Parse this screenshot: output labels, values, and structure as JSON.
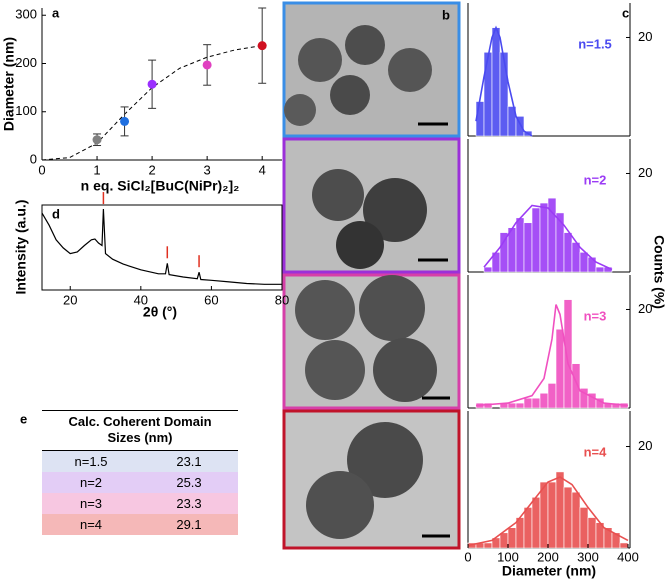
{
  "chart_data": [
    {
      "type": "scatter",
      "label": "a",
      "xlabel": "n eq. SiCl₂[BuC(NiPr)₂]₂",
      "ylabel": "Diameter (nm)",
      "x": [
        1,
        1.5,
        2,
        3,
        4
      ],
      "y": [
        42,
        80,
        157,
        197,
        237
      ],
      "errors": [
        12,
        30,
        50,
        42,
        78
      ],
      "colors": [
        "#808080",
        "#1f6fe0",
        "#9b30ff",
        "#e040c0",
        "#d01020"
      ],
      "fit": {
        "x": [
          0,
          0.5,
          1,
          1.5,
          2,
          2.5,
          3,
          3.5,
          4
        ],
        "y": [
          0,
          5,
          35,
          95,
          150,
          190,
          213,
          228,
          237
        ]
      },
      "xlim": [
        0,
        4.36
      ],
      "ylim": [
        0,
        315
      ],
      "xticks": [
        0,
        1,
        2,
        3,
        4
      ],
      "yticks": [
        0,
        100,
        200,
        300
      ]
    },
    {
      "type": "line",
      "label": "d",
      "xlabel": "2θ (°)",
      "ylabel": "Intensity (a.u.)",
      "color": "#000000",
      "x": [
        12,
        14,
        16,
        18,
        20,
        22,
        24,
        26,
        27,
        28,
        29,
        29.4,
        30,
        32,
        35,
        40,
        45,
        47,
        47.5,
        48,
        52,
        56,
        56.5,
        57,
        60,
        65,
        70,
        75,
        80
      ],
      "y": [
        0.95,
        0.8,
        0.62,
        0.52,
        0.45,
        0.47,
        0.55,
        0.62,
        0.63,
        0.58,
        0.55,
        1.0,
        0.45,
        0.38,
        0.32,
        0.25,
        0.2,
        0.2,
        0.33,
        0.19,
        0.16,
        0.14,
        0.22,
        0.13,
        0.12,
        0.1,
        0.08,
        0.07,
        0.07
      ],
      "peaks": [
        29.4,
        47.5,
        56.5
      ],
      "peak_color": "#e03020",
      "xlim": [
        12,
        80
      ],
      "ylim": [
        0,
        1.05
      ],
      "xticks": [
        20,
        40,
        60,
        80
      ]
    },
    {
      "type": "histogram",
      "label": "c",
      "annotation": "n=1.5",
      "color": "#4a4af0",
      "bins": [
        20,
        40,
        60,
        80,
        100,
        120,
        140,
        160
      ],
      "values": [
        7,
        17,
        22,
        17,
        6,
        4,
        1
      ],
      "fit": {
        "x": [
          20,
          40,
          60,
          70,
          80,
          100,
          120,
          140,
          160
        ],
        "y": [
          3,
          12,
          20,
          22,
          20,
          11,
          4,
          1,
          0
        ]
      },
      "xlim": [
        0,
        405
      ],
      "ylim": [
        0,
        27
      ],
      "yticks": [
        20
      ]
    },
    {
      "type": "histogram",
      "annotation": "n=2",
      "color": "#9b3cf5",
      "ylabel": "Counts (%)",
      "bins": [
        40,
        60,
        80,
        100,
        120,
        140,
        160,
        180,
        200,
        220,
        240,
        260,
        280,
        300,
        320,
        340,
        360
      ],
      "values": [
        1,
        4,
        8,
        9,
        11,
        10,
        13,
        14,
        15,
        12,
        8,
        6,
        4,
        3,
        1,
        1
      ],
      "fit": {
        "x": [
          40,
          80,
          120,
          160,
          200,
          240,
          280,
          320,
          360
        ],
        "y": [
          1,
          5,
          10,
          13.5,
          13,
          9.5,
          5,
          2,
          0.5
        ]
      },
      "xlim": [
        0,
        405
      ],
      "ylim": [
        0,
        27
      ],
      "yticks": [
        20
      ]
    },
    {
      "type": "histogram",
      "annotation": "n=3",
      "color": "#f050c0",
      "bins": [
        20,
        40,
        60,
        80,
        100,
        120,
        140,
        160,
        180,
        200,
        220,
        240,
        260,
        280,
        300,
        320,
        340,
        360,
        380,
        400
      ],
      "values": [
        1,
        1,
        0,
        1,
        1,
        1,
        2,
        2,
        3,
        5,
        16,
        22,
        9,
        4,
        3,
        2,
        1,
        1,
        1
      ],
      "fit": {
        "x": [
          20,
          100,
          160,
          190,
          210,
          220,
          230,
          250,
          280,
          340,
          400
        ],
        "y": [
          0.5,
          1,
          2.5,
          6,
          14,
          21,
          19,
          9,
          3.5,
          1,
          0.5
        ]
      },
      "xlim": [
        0,
        405
      ],
      "ylim": [
        0,
        27
      ],
      "yticks": [
        20
      ]
    },
    {
      "type": "histogram",
      "annotation": "n=4",
      "color": "#e85050",
      "xlabel": "Diameter (nm)",
      "bins": [
        0,
        20,
        40,
        60,
        80,
        100,
        120,
        140,
        160,
        180,
        200,
        220,
        240,
        260,
        280,
        300,
        320,
        340,
        360,
        380,
        400
      ],
      "values": [
        1,
        1,
        1,
        2,
        3,
        4,
        6,
        8,
        10,
        13,
        13,
        15,
        12,
        11,
        8,
        6,
        5,
        4,
        3,
        1
      ],
      "fit": {
        "x": [
          0,
          60,
          120,
          160,
          200,
          230,
          260,
          300,
          340,
          400
        ],
        "y": [
          0.5,
          1.5,
          5,
          9,
          13,
          14,
          12.5,
          8,
          4,
          1.5
        ]
      },
      "xlim": [
        0,
        405
      ],
      "ylim": [
        0,
        27
      ],
      "xticks": [
        0,
        100,
        200,
        300,
        400
      ],
      "yticks": [
        20
      ]
    }
  ],
  "panel_b": {
    "label": "b"
  },
  "table": {
    "label": "e",
    "header": "Calc. Coherent Domain Sizes (nm)",
    "rows": [
      [
        "n=1.5",
        "23.1"
      ],
      [
        "n=2",
        "25.3"
      ],
      [
        "n=3",
        "23.3"
      ],
      [
        "n=4",
        "29.1"
      ]
    ],
    "colors": [
      "#dde3f3",
      "#e3cdf6",
      "#f7c7e1",
      "#f5b8b8"
    ]
  }
}
